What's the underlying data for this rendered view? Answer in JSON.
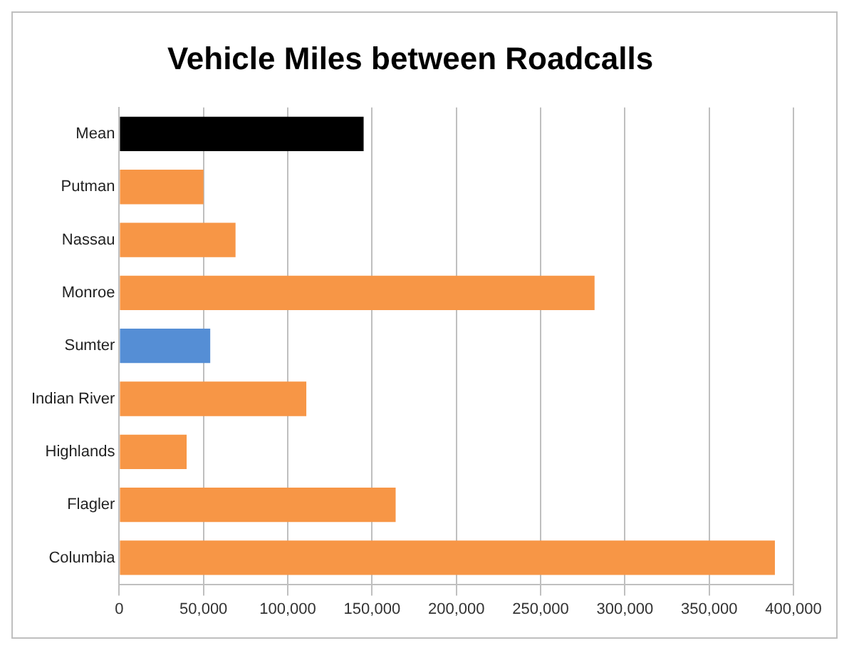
{
  "chart_data": {
    "type": "bar",
    "orientation": "horizontal",
    "title": "Vehicle Miles between Roadcalls",
    "categories": [
      "Mean",
      "Putman",
      "Nassau",
      "Monroe",
      "Sumter",
      "Indian River",
      "Highlands",
      "Flagler",
      "Columbia"
    ],
    "values": [
      145000,
      50000,
      69000,
      282000,
      54000,
      111000,
      40000,
      164000,
      389000
    ],
    "colors": [
      "#000000",
      "#f79646",
      "#f79646",
      "#f79646",
      "#558ed5",
      "#f79646",
      "#f79646",
      "#f79646",
      "#f79646"
    ],
    "xlim": [
      0,
      400000
    ],
    "xticks": [
      0,
      {
        "value": 50000,
        "label": "50,000"
      },
      {
        "value": 100000,
        "label": "100,000"
      },
      {
        "value": 150000,
        "label": "150,000"
      },
      {
        "value": 200000,
        "label": "200,000"
      },
      {
        "value": 250000,
        "label": "250,000"
      },
      {
        "value": 300000,
        "label": "300,000"
      },
      {
        "value": 350000,
        "label": "350,000"
      },
      {
        "value": 400000,
        "label": "400,000"
      }
    ],
    "grid": "x",
    "legend": false
  }
}
